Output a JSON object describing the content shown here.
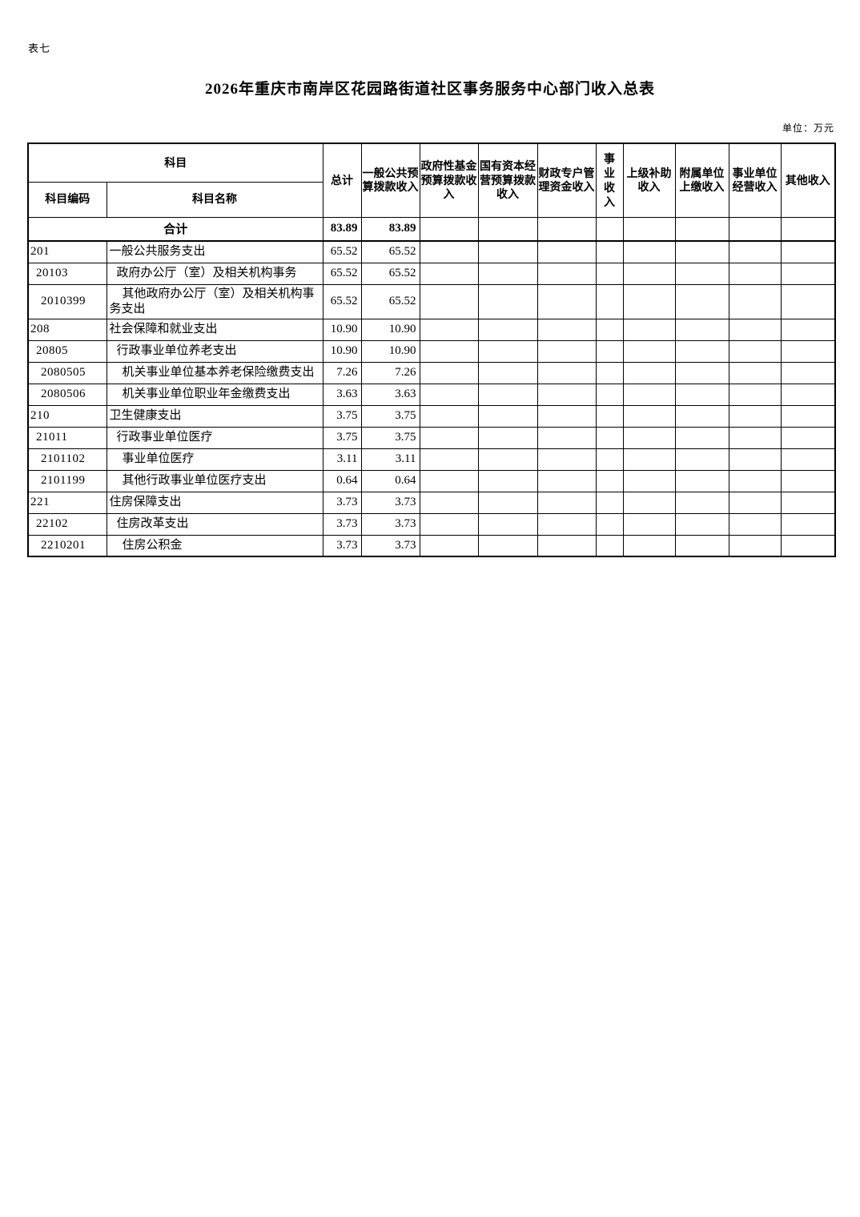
{
  "page": {
    "tag": "表七",
    "title": "2026年重庆市南岸区花园路街道社区事务服务中心部门收入总表",
    "unit_label": "单位：万元"
  },
  "table": {
    "header": {
      "subject_group": "科目",
      "subject_code": "科目编码",
      "subject_name": "科目名称",
      "columns": [
        "总计",
        "一般公共预算拨款收入",
        "政府性基金预算拨款收入",
        "国有资本经营预算拨款收入",
        "财政专户管理资金收入",
        "事业收入",
        "上级补助收入",
        "附属单位上缴收入",
        "事业单位经营收入",
        "其他收入"
      ]
    },
    "total_row": {
      "label": "合计",
      "total": "83.89",
      "general_public_budget": "83.89"
    },
    "rows": [
      {
        "code": "201",
        "name": "一般公共服务支出",
        "level": 1,
        "total": "65.52",
        "general_public_budget": "65.52"
      },
      {
        "code": "20103",
        "name": "政府办公厅（室）及相关机构事务",
        "level": 2,
        "total": "65.52",
        "general_public_budget": "65.52"
      },
      {
        "code": "2010399",
        "name": "其他政府办公厅（室）及相关机构事务支出",
        "level": 3,
        "total": "65.52",
        "general_public_budget": "65.52"
      },
      {
        "code": "208",
        "name": "社会保障和就业支出",
        "level": 1,
        "total": "10.90",
        "general_public_budget": "10.90"
      },
      {
        "code": "20805",
        "name": "行政事业单位养老支出",
        "level": 2,
        "total": "10.90",
        "general_public_budget": "10.90"
      },
      {
        "code": "2080505",
        "name": "机关事业单位基本养老保险缴费支出",
        "level": 3,
        "total": "7.26",
        "general_public_budget": "7.26"
      },
      {
        "code": "2080506",
        "name": "机关事业单位职业年金缴费支出",
        "level": 3,
        "total": "3.63",
        "general_public_budget": "3.63"
      },
      {
        "code": "210",
        "name": "卫生健康支出",
        "level": 1,
        "total": "3.75",
        "general_public_budget": "3.75"
      },
      {
        "code": "21011",
        "name": "行政事业单位医疗",
        "level": 2,
        "total": "3.75",
        "general_public_budget": "3.75"
      },
      {
        "code": "2101102",
        "name": "事业单位医疗",
        "level": 3,
        "total": "3.11",
        "general_public_budget": "3.11"
      },
      {
        "code": "2101199",
        "name": "其他行政事业单位医疗支出",
        "level": 3,
        "total": "0.64",
        "general_public_budget": "0.64"
      },
      {
        "code": "221",
        "name": "住房保障支出",
        "level": 1,
        "total": "3.73",
        "general_public_budget": "3.73"
      },
      {
        "code": "22102",
        "name": "住房改革支出",
        "level": 2,
        "total": "3.73",
        "general_public_budget": "3.73"
      },
      {
        "code": "2210201",
        "name": "住房公积金",
        "level": 3,
        "total": "3.73",
        "general_public_budget": "3.73"
      }
    ]
  }
}
